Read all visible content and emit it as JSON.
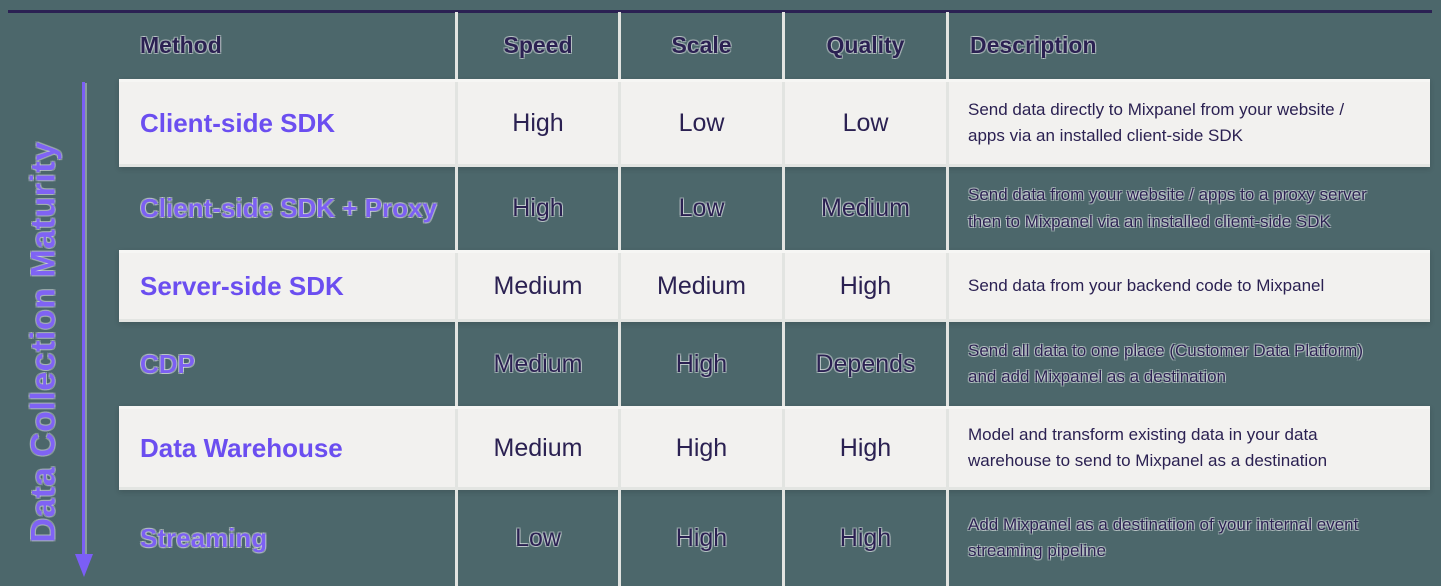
{
  "colors": {
    "background": "#4c676b",
    "light_row": "#f2f1ef",
    "grid_line": "#e2e4e1",
    "ink_navy": "#2b2152",
    "method_purple": "#6b4ef0",
    "axis_purple": "#7b5ef6",
    "top_rule_navy": "#2b2153"
  },
  "side_axis": {
    "label": "Data Collection Maturity",
    "direction": "arrow-down"
  },
  "table": {
    "headers": [
      "Method",
      "Speed",
      "Scale",
      "Quality",
      "Description"
    ],
    "rows": [
      {
        "method": "Client-side SDK",
        "speed": "High",
        "scale": "Low",
        "quality": "Low",
        "description": "Send data directly to Mixpanel from your website / apps via an installed client-side SDK",
        "variant": "light"
      },
      {
        "method": "Client-side SDK + Proxy",
        "speed": "High",
        "scale": "Low",
        "quality": "Medium",
        "description": "Send data from your website / apps to a proxy server then to Mixpanel via an installed client-side SDK",
        "variant": "dark"
      },
      {
        "method": "Server-side SDK",
        "speed": "Medium",
        "scale": "Medium",
        "quality": "High",
        "description": "Send data from your backend code to Mixpanel",
        "variant": "light"
      },
      {
        "method": "CDP",
        "speed": "Medium",
        "scale": "High",
        "quality": "Depends",
        "description": "Send all data to one place (Customer Data Platform) and add Mixpanel as a destination",
        "variant": "dark"
      },
      {
        "method": "Data Warehouse",
        "speed": "Medium",
        "scale": "High",
        "quality": "High",
        "description": "Model and transform existing data in your data warehouse to send to Mixpanel as a destination",
        "variant": "light"
      },
      {
        "method": "Streaming",
        "speed": "Low",
        "scale": "High",
        "quality": "High",
        "description": "Add Mixpanel as a destination of your internal event streaming pipeline",
        "variant": "dark"
      }
    ]
  }
}
